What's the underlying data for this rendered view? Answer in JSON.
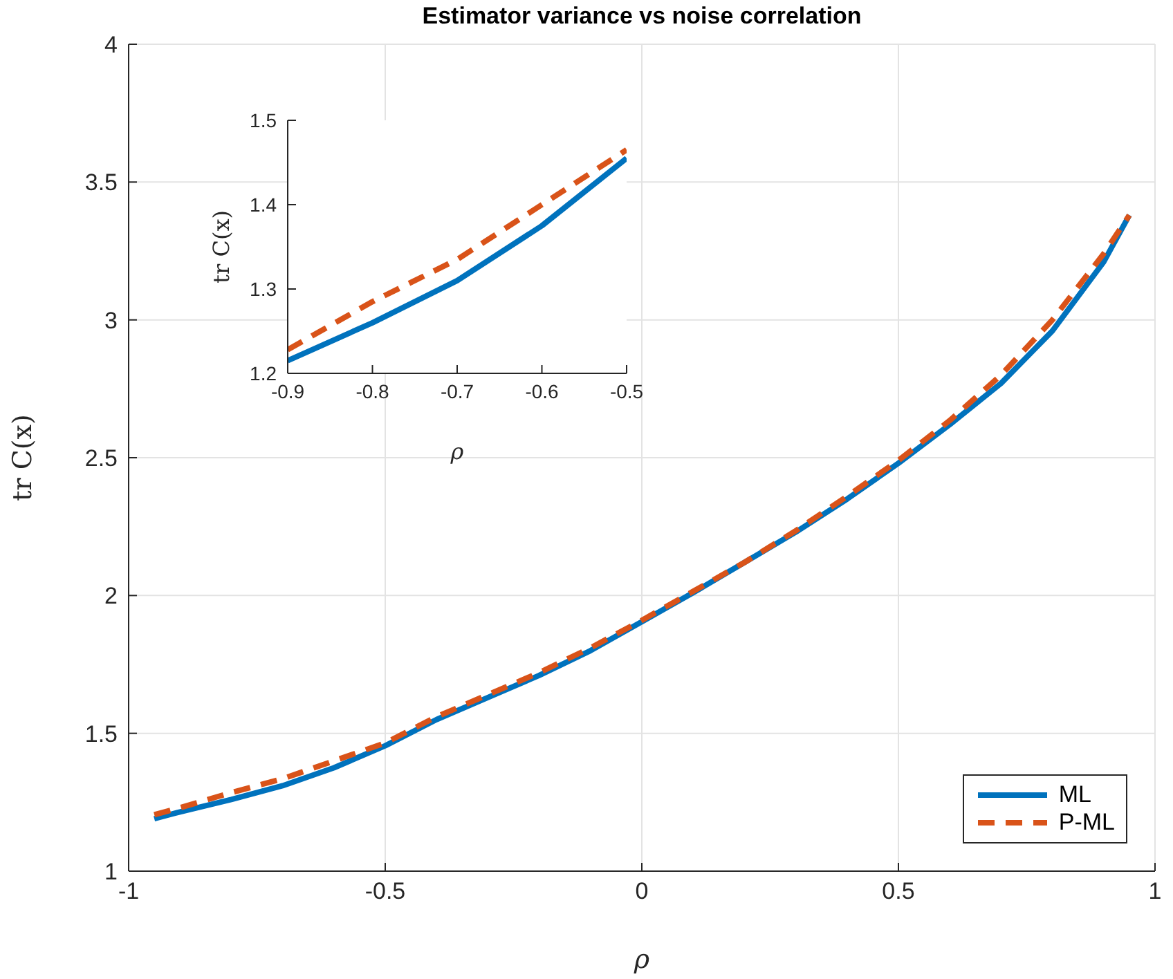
{
  "chart_data": [
    {
      "type": "line",
      "title": "Estimator variance vs noise correlation",
      "xlabel": "ρ",
      "ylabel": "tr C(x)",
      "x": [
        -0.95,
        -0.9,
        -0.8,
        -0.7,
        -0.6,
        -0.5,
        -0.4,
        -0.3,
        -0.2,
        -0.1,
        0,
        0.1,
        0.2,
        0.3,
        0.4,
        0.5,
        0.6,
        0.7,
        0.8,
        0.9,
        0.95
      ],
      "series": [
        {
          "name": "ML",
          "color": "#0072bd",
          "line_style": "solid",
          "values": [
            1.19,
            1.215,
            1.26,
            1.31,
            1.375,
            1.455,
            1.55,
            1.63,
            1.71,
            1.8,
            1.905,
            2.01,
            2.12,
            2.23,
            2.35,
            2.48,
            2.62,
            2.77,
            2.96,
            3.21,
            3.38
          ]
        },
        {
          "name": "P-ML",
          "color": "#d95319",
          "line_style": "dashed",
          "values": [
            1.205,
            1.23,
            1.285,
            1.335,
            1.4,
            1.465,
            1.56,
            1.64,
            1.72,
            1.81,
            1.91,
            2.015,
            2.12,
            2.235,
            2.36,
            2.49,
            2.635,
            2.8,
            3.0,
            3.24,
            3.38
          ]
        }
      ],
      "xlim": [
        -1,
        1
      ],
      "xticks": [
        -1,
        -0.5,
        0,
        0.5,
        1
      ],
      "ylim": [
        1,
        4
      ],
      "yticks": [
        1,
        1.5,
        2,
        2.5,
        3,
        3.5,
        4
      ],
      "grid": true,
      "legend": "bottom right",
      "marker": "none"
    },
    {
      "type": "line",
      "xlabel": "ρ",
      "ylabel": "tr C(x)",
      "x": [
        -0.9,
        -0.8,
        -0.7,
        -0.6,
        -0.5
      ],
      "series": [
        {
          "color": "#0072bd",
          "line_style": "solid",
          "values": [
            1.215,
            1.26,
            1.31,
            1.375,
            1.455
          ]
        },
        {
          "color": "#d95319",
          "line_style": "dashed",
          "values": [
            1.228,
            1.285,
            1.335,
            1.4,
            1.465
          ]
        }
      ],
      "xlim": [
        -0.9,
        -0.5
      ],
      "xticks": [
        -0.9,
        -0.8,
        -0.7,
        -0.6,
        -0.5
      ],
      "ylim": [
        1.2,
        1.5
      ],
      "yticks": [
        1.2,
        1.3,
        1.4,
        1.5
      ],
      "grid": false,
      "legend": false,
      "marker": "none"
    }
  ]
}
